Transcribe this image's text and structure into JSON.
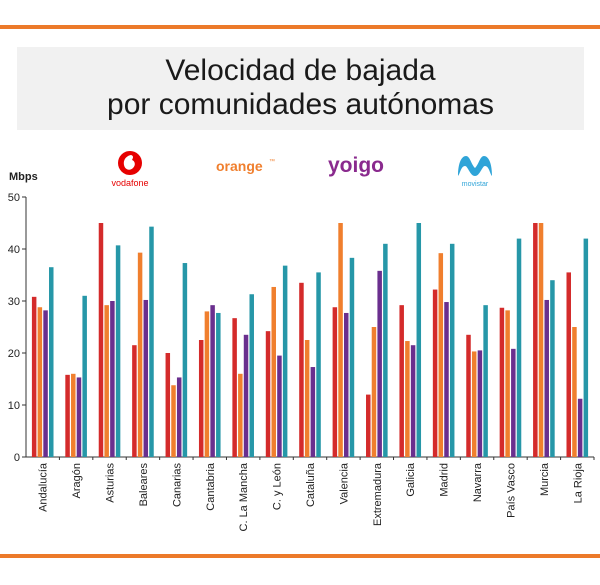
{
  "header": {
    "title_line1": "Velocidad de bajada",
    "title_line2": "por comunidades autónomas"
  },
  "logos": {
    "vodafone": "vodafone",
    "orange": "orange",
    "orange_mark": "™",
    "yoigo": "yoigo",
    "movistar": "movistar"
  },
  "colors": {
    "vodafone": "#d42b2b",
    "orange": "#f07f2e",
    "yoigo": "#6a2f8e",
    "movistar": "#2697a8",
    "accent_rule": "#ec7a2a"
  },
  "chart_data": {
    "type": "bar",
    "ylabel": "Mbps",
    "ylim": [
      0,
      50
    ],
    "yticks": [
      0,
      10,
      20,
      30,
      40,
      50
    ],
    "grid": false,
    "categories": [
      "Andalucía",
      "Aragón",
      "Asturias",
      "Baleares",
      "Canarias",
      "Cantabria",
      "C. La Mancha",
      "C. y León",
      "Cataluña",
      "Valencia",
      "Extremadura",
      "Galicia",
      "Madrid",
      "Navarra",
      "País Vasco",
      "Murcia",
      "La Rioja"
    ],
    "series": [
      {
        "name": "vodafone",
        "color": "#d42b2b",
        "values": [
          30.8,
          15.8,
          45.0,
          21.5,
          20.0,
          22.5,
          26.7,
          24.2,
          33.5,
          28.8,
          12.0,
          29.2,
          32.2,
          23.5,
          28.7,
          45.0,
          35.5
        ]
      },
      {
        "name": "orange",
        "color": "#f07f2e",
        "values": [
          28.8,
          16.0,
          29.2,
          39.3,
          13.8,
          28.0,
          16.0,
          32.7,
          22.5,
          45.0,
          25.0,
          22.3,
          39.2,
          20.3,
          28.2,
          45.0,
          25.0
        ]
      },
      {
        "name": "yoigo",
        "color": "#6a2f8e",
        "values": [
          28.2,
          15.3,
          30.0,
          30.2,
          15.3,
          29.2,
          23.5,
          19.5,
          17.3,
          27.7,
          35.8,
          21.5,
          29.8,
          20.5,
          20.8,
          30.2,
          11.2
        ]
      },
      {
        "name": "movistar",
        "color": "#2697a8",
        "values": [
          36.5,
          31.0,
          40.7,
          44.3,
          37.3,
          27.7,
          31.3,
          36.8,
          35.5,
          38.3,
          41.0,
          45.0,
          41.0,
          29.2,
          42.0,
          34.0,
          42.0
        ]
      }
    ]
  }
}
